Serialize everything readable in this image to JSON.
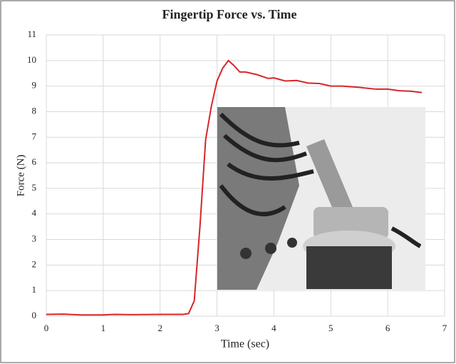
{
  "chart_data": {
    "type": "line",
    "title": "Fingertip Force vs. Time",
    "x_label": "Time (sec)",
    "y_label": "Force (N)",
    "x": [
      0,
      0.3,
      0.6,
      1.0,
      1.2,
      1.5,
      2.0,
      2.4,
      2.5,
      2.6,
      2.7,
      2.8,
      2.9,
      3.0,
      3.1,
      3.2,
      3.3,
      3.4,
      3.5,
      3.7,
      3.9,
      4.0,
      4.2,
      4.4,
      4.6,
      4.8,
      5.0,
      5.2,
      5.5,
      5.8,
      6.0,
      6.2,
      6.4,
      6.6
    ],
    "series": [
      {
        "name": "Force",
        "color": "#d62728",
        "values": [
          0.07,
          0.08,
          0.05,
          0.05,
          0.07,
          0.06,
          0.07,
          0.07,
          0.1,
          0.6,
          3.5,
          6.9,
          8.2,
          9.2,
          9.7,
          10.0,
          9.8,
          9.55,
          9.55,
          9.45,
          9.3,
          9.32,
          9.2,
          9.22,
          9.12,
          9.1,
          9.0,
          9.0,
          8.95,
          8.88,
          8.88,
          8.82,
          8.8,
          8.75
        ]
      }
    ],
    "xlim": [
      0,
      7
    ],
    "xticks": [
      0,
      1,
      2,
      3,
      4,
      5,
      6,
      7
    ],
    "ylim": [
      0,
      11
    ],
    "yticks": [
      0,
      1,
      2,
      3,
      4,
      5,
      6,
      7,
      8,
      9,
      10,
      11
    ],
    "grid": true
  }
}
